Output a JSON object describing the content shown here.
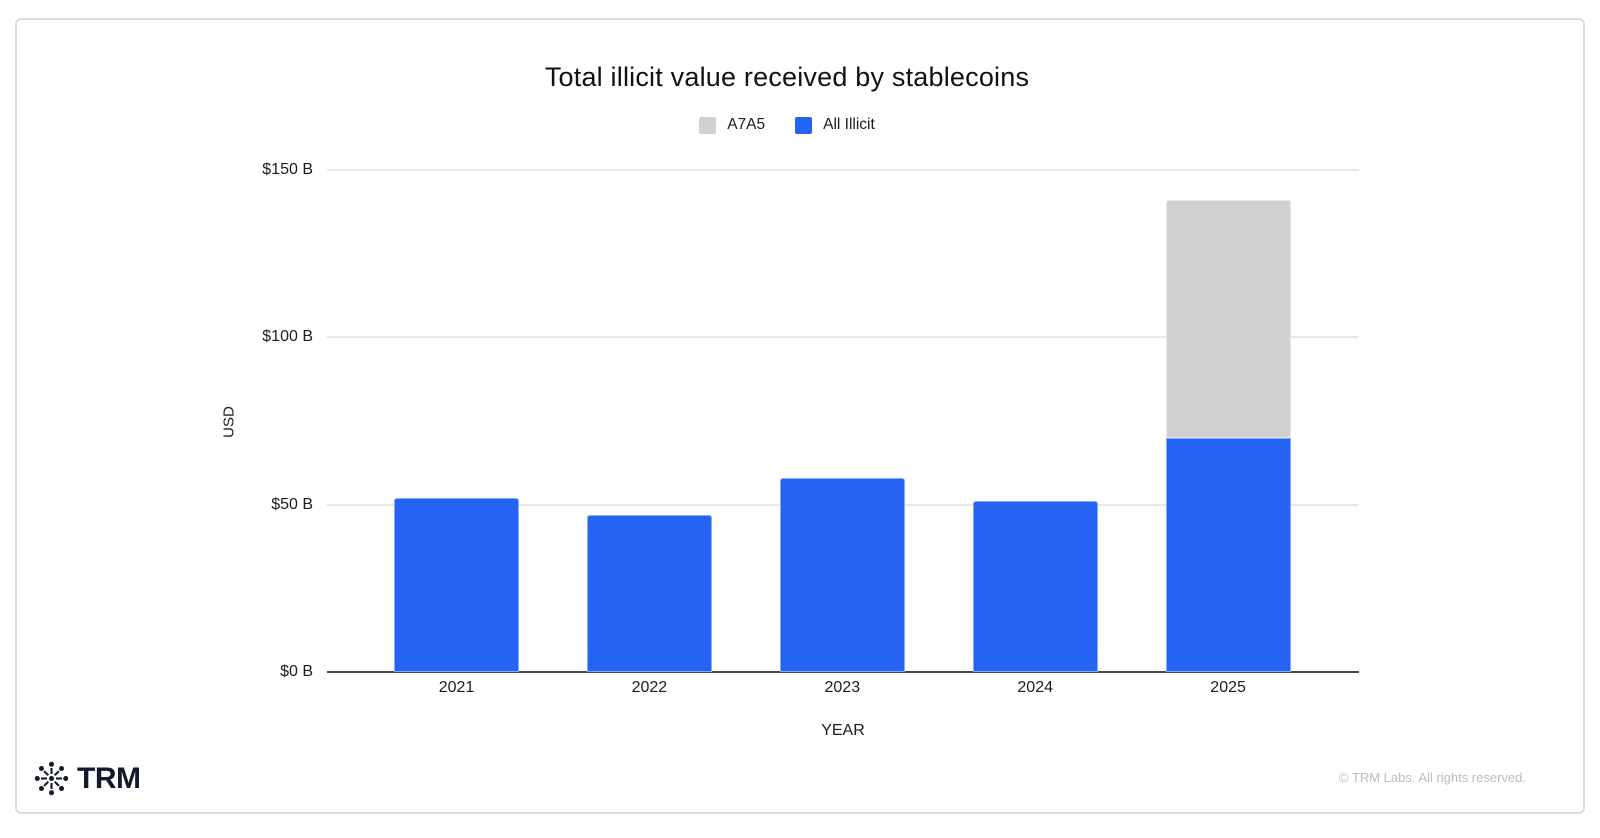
{
  "page": {
    "background": "#ffffff",
    "card_border_color": "#dcdcdc"
  },
  "chart_data": {
    "type": "bar",
    "stacked": true,
    "title": "Total illicit value received by stablecoins",
    "xlabel": "YEAR",
    "ylabel": "USD",
    "unit": "USD billions",
    "categories": [
      "2021",
      "2022",
      "2023",
      "2024",
      "2025"
    ],
    "series": [
      {
        "name": "All Illicit",
        "color": "#2563F5",
        "values": [
          52,
          47,
          58,
          51,
          70
        ]
      },
      {
        "name": "A7A5",
        "color": "#D1D1D1",
        "values": [
          0,
          0,
          0,
          0,
          71
        ]
      }
    ],
    "legend": [
      {
        "label": "A7A5",
        "color": "#D1D1D1"
      },
      {
        "label": "All Illicit",
        "color": "#2563F5"
      }
    ],
    "y_ticks": [
      {
        "value": 0,
        "label": "$0 B"
      },
      {
        "value": 50,
        "label": "$50 B"
      },
      {
        "value": 100,
        "label": "$100 B"
      },
      {
        "value": 150,
        "label": "$150 B"
      }
    ],
    "ylim": [
      0,
      150
    ],
    "grid": true,
    "legend_position": "top",
    "gridline_color": "#e7e7e7",
    "baseline_color": "#4a4a4a"
  },
  "footer": {
    "logo_text": "TRM",
    "copyright": "© TRM Labs. All rights reserved."
  }
}
